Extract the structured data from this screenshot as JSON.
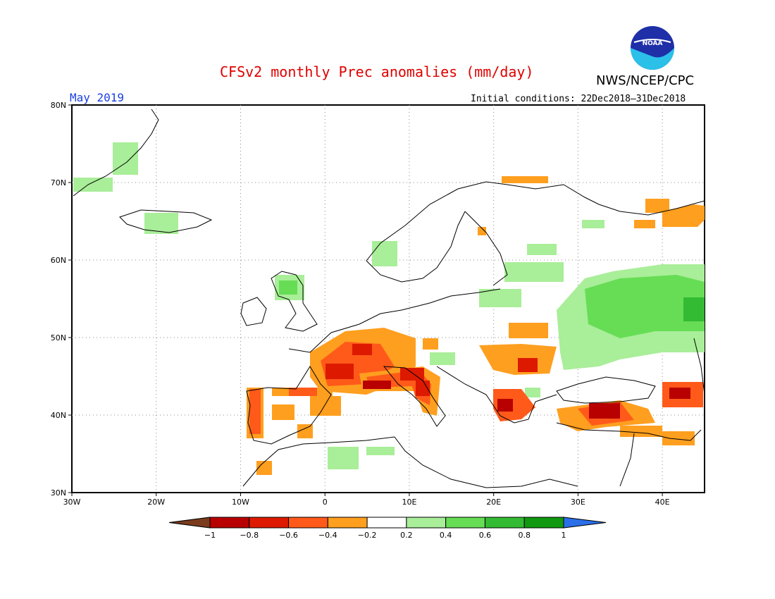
{
  "header": {
    "title": "CFSv2 monthly Prec anomalies (mm/day)",
    "agency": "NWS/NCEP/CPC",
    "logo_text": "NOAA",
    "month": "May 2019",
    "initial_conditions": "Initial conditions: 22Dec2018–31Dec2018"
  },
  "axes": {
    "lon_labels": [
      "30W",
      "20W",
      "10W",
      "0",
      "10E",
      "20E",
      "30E",
      "40E"
    ],
    "lat_labels": [
      "80N",
      "70N",
      "60N",
      "50N",
      "40N",
      "30N"
    ]
  },
  "colorbar": {
    "ticks": [
      "−1",
      "−0.8",
      "−0.6",
      "−0.4",
      "−0.2",
      "0.2",
      "0.4",
      "0.6",
      "0.8",
      "1"
    ],
    "colors": [
      "#7a3c1c",
      "#b80000",
      "#dd1a00",
      "#ff5a1a",
      "#ff9f1f",
      "#ffffff",
      "#a9ee99",
      "#66dd55",
      "#33bb33",
      "#119911",
      "#2b6fe8"
    ]
  },
  "map": {
    "background": "#ffffff",
    "grid": true,
    "lon_range": [
      -30,
      45
    ],
    "lat_range": [
      30,
      80
    ]
  }
}
